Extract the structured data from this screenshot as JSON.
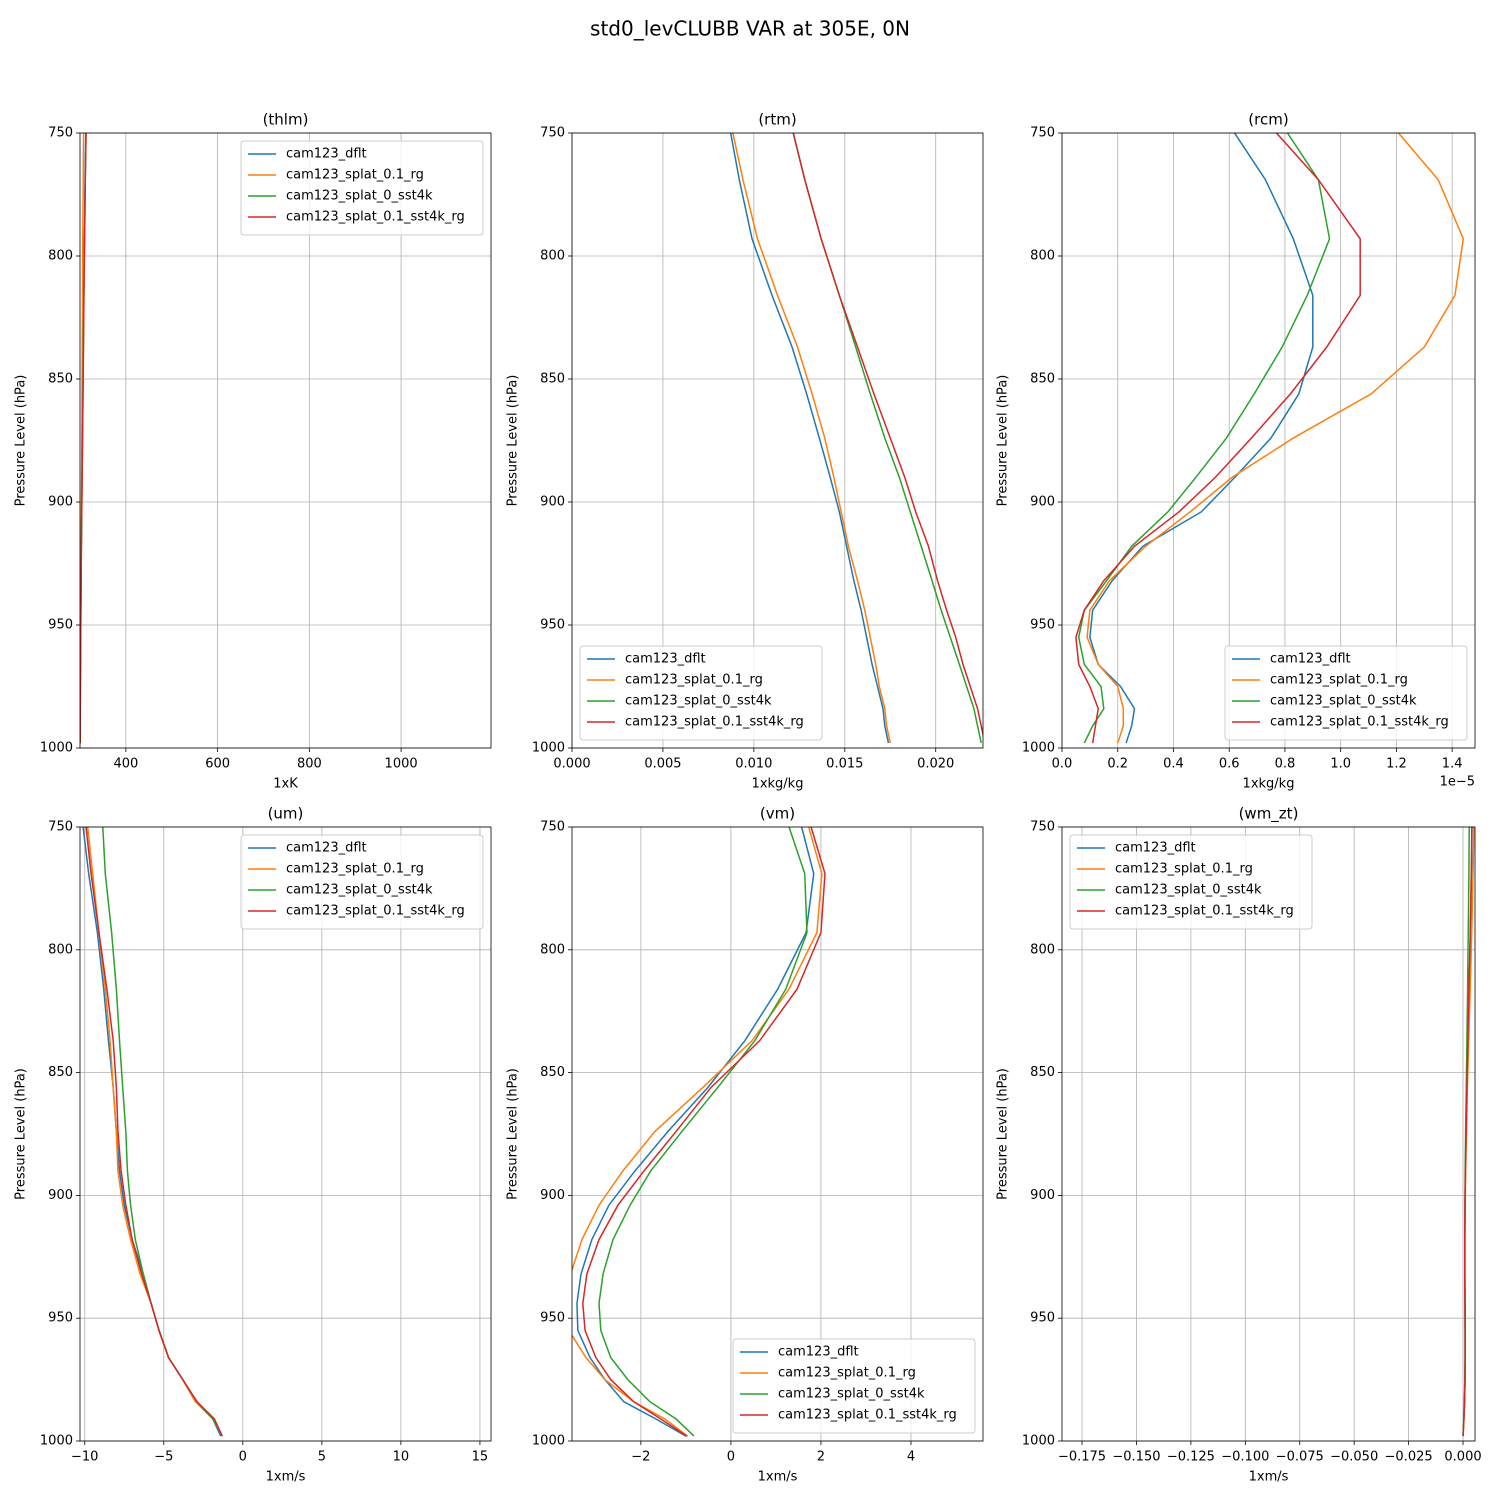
{
  "title": "std0_levCLUBB VAR at 305E, 0N",
  "chart_data": [
    {
      "type": "line",
      "title": "(thlm)",
      "xlabel": "1xK",
      "ylabel": "Pressure Level (hPa)",
      "legend": "upper right",
      "grid": true,
      "xlim": [
        300,
        1196
      ],
      "xticks": [
        400,
        600,
        800,
        1000
      ],
      "ylim": [
        1000,
        750
      ],
      "yticks": [
        750,
        800,
        850,
        900,
        950,
        1000
      ],
      "y": [
        745,
        769,
        793,
        816,
        837,
        856,
        874,
        890,
        904,
        918,
        932,
        944,
        955,
        966,
        975,
        984,
        991,
        998
      ],
      "series": [
        {
          "name": "cam123_dflt",
          "color": "#1f77b4",
          "values": [
            313,
            311,
            309.5,
            308,
            307,
            306,
            305,
            304.2,
            303.5,
            302.8,
            302.2,
            301.7,
            301.3,
            301,
            300.7,
            300.5,
            300.3,
            300.1
          ]
        },
        {
          "name": "cam123_splat_0.1_rg",
          "color": "#ff7f0e",
          "values": [
            308,
            307,
            306,
            305.5,
            305,
            304.5,
            304,
            303.5,
            303,
            302.5,
            302,
            301.6,
            301.2,
            300.9,
            300.6,
            300.4,
            300.2,
            300
          ]
        },
        {
          "name": "cam123_splat_0_sst4k",
          "color": "#2ca02c",
          "values": [
            313.5,
            311.5,
            310,
            308.5,
            307.5,
            306.5,
            305.5,
            304.6,
            303.8,
            303,
            302.4,
            301.9,
            301.5,
            301.1,
            300.8,
            300.6,
            300.4,
            300.2
          ]
        },
        {
          "name": "cam123_splat_0.1_sst4k_rg",
          "color": "#d62728",
          "values": [
            313.5,
            311.5,
            310,
            308.5,
            307.5,
            306.5,
            305.5,
            304.6,
            303.8,
            303,
            302.4,
            301.9,
            301.5,
            301.1,
            300.8,
            300.6,
            300.4,
            300.2
          ]
        }
      ]
    },
    {
      "type": "line",
      "title": "(rtm)",
      "xlabel": "1xkg/kg",
      "ylabel": "Pressure Level (hPa)",
      "legend": "lower left",
      "grid": true,
      "xlim": [
        0,
        0.0226
      ],
      "xticks": [
        {
          "value": 0,
          "label": "0.000"
        },
        {
          "value": 0.005,
          "label": "0.005"
        },
        {
          "value": 0.01,
          "label": "0.010"
        },
        {
          "value": 0.015,
          "label": "0.015"
        },
        {
          "value": 0.02,
          "label": "0.020"
        }
      ],
      "ylim": [
        1000,
        750
      ],
      "yticks": [
        750,
        800,
        850,
        900,
        950,
        1000
      ],
      "y": [
        745,
        769,
        793,
        816,
        837,
        856,
        874,
        890,
        904,
        918,
        932,
        944,
        955,
        966,
        975,
        984,
        991,
        998
      ],
      "series": [
        {
          "name": "cam123_dflt",
          "color": "#1f77b4",
          "values": [
            0.0086,
            0.0092,
            0.0099,
            0.011,
            0.0121,
            0.0129,
            0.0136,
            0.0142,
            0.0147,
            0.0151,
            0.0155,
            0.0159,
            0.0162,
            0.0165,
            0.0168,
            0.0171,
            0.0172,
            0.0174
          ]
        },
        {
          "name": "cam123_splat_0.1_rg",
          "color": "#ff7f0e",
          "values": [
            0.0087,
            0.0094,
            0.0102,
            0.0113,
            0.0124,
            0.0132,
            0.0139,
            0.0144,
            0.0148,
            0.0152,
            0.0157,
            0.0161,
            0.0164,
            0.0167,
            0.0169,
            0.0172,
            0.0173,
            0.0175
          ]
        },
        {
          "name": "cam123_splat_0_sst4k",
          "color": "#2ca02c",
          "values": [
            0.012,
            0.0128,
            0.0137,
            0.0147,
            0.0156,
            0.0164,
            0.0172,
            0.018,
            0.0186,
            0.0192,
            0.0198,
            0.0203,
            0.0208,
            0.0213,
            0.0217,
            0.0221,
            0.0223,
            0.0225
          ]
        },
        {
          "name": "cam123_splat_0.1_sst4k_rg",
          "color": "#d62728",
          "values": [
            0.012,
            0.0128,
            0.0137,
            0.0147,
            0.0157,
            0.0166,
            0.0175,
            0.0183,
            0.0189,
            0.0196,
            0.0201,
            0.0206,
            0.0211,
            0.0215,
            0.0219,
            0.0223,
            0.0225,
            0.0227
          ]
        }
      ]
    },
    {
      "type": "line",
      "title": "(rcm)",
      "xlabel": "1xkg/kg",
      "x_offset_label": "1e−5",
      "ylabel": "Pressure Level (hPa)",
      "legend": "lower right",
      "grid": true,
      "xlim": [
        0,
        1.482
      ],
      "xticks": [
        {
          "value": 0,
          "label": "0.0"
        },
        0.2,
        0.4,
        0.6,
        0.8,
        {
          "value": 1,
          "label": "1.0"
        },
        1.2,
        1.4
      ],
      "ylim": [
        1000,
        750
      ],
      "yticks": [
        750,
        800,
        850,
        900,
        950,
        1000
      ],
      "y": [
        745,
        769,
        793,
        816,
        837,
        856,
        874,
        890,
        904,
        918,
        932,
        944,
        955,
        966,
        975,
        984,
        991,
        998
      ],
      "series": [
        {
          "name": "cam123_dflt",
          "color": "#1f77b4",
          "values": [
            0.59,
            0.73,
            0.83,
            0.9,
            0.9,
            0.85,
            0.75,
            0.62,
            0.5,
            0.29,
            0.18,
            0.11,
            0.1,
            0.13,
            0.21,
            0.26,
            0.25,
            0.23
          ]
        },
        {
          "name": "cam123_splat_0.1_rg",
          "color": "#ff7f0e",
          "values": [
            1.17,
            1.35,
            1.44,
            1.41,
            1.3,
            1.11,
            0.83,
            0.61,
            0.46,
            0.3,
            0.17,
            0.1,
            0.09,
            0.13,
            0.2,
            0.22,
            0.22,
            0.2
          ]
        },
        {
          "name": "cam123_splat_0_sst4k",
          "color": "#2ca02c",
          "values": [
            0.78,
            0.92,
            0.96,
            0.88,
            0.79,
            0.69,
            0.59,
            0.48,
            0.38,
            0.25,
            0.16,
            0.08,
            0.06,
            0.08,
            0.14,
            0.15,
            0.11,
            0.08
          ]
        },
        {
          "name": "cam123_splat_0.1_sst4k_rg",
          "color": "#d62728",
          "values": [
            0.73,
            0.92,
            1.07,
            1.07,
            0.95,
            0.82,
            0.68,
            0.55,
            0.42,
            0.26,
            0.15,
            0.08,
            0.05,
            0.06,
            0.1,
            0.13,
            0.12,
            0.11
          ]
        }
      ]
    },
    {
      "type": "line",
      "title": "(um)",
      "xlabel": "1xm/s",
      "ylabel": "Pressure Level (hPa)",
      "legend": "upper right",
      "grid": true,
      "xlim": [
        -10.3,
        15.7
      ],
      "xticks": [
        {
          "value": -10,
          "label": "−10"
        },
        {
          "value": -5,
          "label": "−5"
        },
        0,
        5,
        10,
        15
      ],
      "ylim": [
        1000,
        750
      ],
      "yticks": [
        750,
        800,
        850,
        900,
        950,
        1000
      ],
      "y": [
        745,
        769,
        793,
        816,
        837,
        856,
        874,
        890,
        904,
        918,
        932,
        944,
        955,
        966,
        975,
        984,
        991,
        998
      ],
      "series": [
        {
          "name": "cam123_dflt",
          "color": "#1f77b4",
          "values": [
            -10.2,
            -9.75,
            -9.2,
            -8.8,
            -8.5,
            -8.2,
            -8,
            -7.8,
            -7.5,
            -7,
            -6.3,
            -5.8,
            -5.3,
            -4.7,
            -3.8,
            -3,
            -1.9,
            -1.4
          ]
        },
        {
          "name": "cam123_splat_0.1_rg",
          "color": "#ff7f0e",
          "values": [
            -9.9,
            -9.5,
            -9.1,
            -8.7,
            -8.4,
            -8.2,
            -8,
            -7.9,
            -7.6,
            -7.1,
            -6.5,
            -5.8,
            -5.3,
            -4.7,
            -3.8,
            -3,
            -1.9,
            -1.3
          ]
        },
        {
          "name": "cam123_splat_0_sst4k",
          "color": "#2ca02c",
          "values": [
            -8.9,
            -8.7,
            -8.3,
            -8,
            -7.8,
            -7.6,
            -7.4,
            -7.3,
            -7.1,
            -6.8,
            -6.3,
            -5.8,
            -5.3,
            -4.7,
            -3.8,
            -2.9,
            -1.9,
            -1.3
          ]
        },
        {
          "name": "cam123_splat_0.1_sst4k_rg",
          "color": "#d62728",
          "values": [
            -10,
            -9.6,
            -9.1,
            -8.6,
            -8.2,
            -8,
            -7.9,
            -7.7,
            -7.4,
            -7,
            -6.4,
            -5.8,
            -5.3,
            -4.7,
            -3.8,
            -2.9,
            -1.8,
            -1.3
          ]
        }
      ]
    },
    {
      "type": "line",
      "title": "(vm)",
      "xlabel": "1xm/s",
      "ylabel": "Pressure Level (hPa)",
      "legend": "lower right",
      "grid": true,
      "xlim": [
        -3.53,
        5.6
      ],
      "xticks": [
        {
          "value": -2,
          "label": "−2"
        },
        0,
        2,
        4
      ],
      "ylim": [
        1000,
        750
      ],
      "yticks": [
        750,
        800,
        850,
        900,
        950,
        1000
      ],
      "y": [
        745,
        769,
        793,
        816,
        837,
        856,
        874,
        890,
        904,
        918,
        932,
        944,
        955,
        966,
        975,
        984,
        991,
        998
      ],
      "series": [
        {
          "name": "cam123_dflt",
          "color": "#1f77b4",
          "values": [
            1.5,
            1.84,
            1.67,
            1.04,
            0.31,
            -0.51,
            -1.4,
            -2.13,
            -2.71,
            -3.09,
            -3.33,
            -3.42,
            -3.4,
            -3.13,
            -2.8,
            -2.38,
            -1.67,
            -1
          ]
        },
        {
          "name": "cam123_splat_0.1_rg",
          "color": "#ff7f0e",
          "values": [
            1.65,
            2.02,
            1.91,
            1.29,
            0.47,
            -0.62,
            -1.69,
            -2.4,
            -2.93,
            -3.31,
            -3.56,
            -3.67,
            -3.6,
            -3.22,
            -2.8,
            -2.16,
            -1.47,
            -0.96
          ]
        },
        {
          "name": "cam123_splat_0_sst4k",
          "color": "#2ca02c",
          "values": [
            1.2,
            1.64,
            1.69,
            1.22,
            0.53,
            -0.29,
            -1.09,
            -1.78,
            -2.24,
            -2.62,
            -2.84,
            -2.93,
            -2.89,
            -2.67,
            -2.29,
            -1.8,
            -1.22,
            -0.82
          ]
        },
        {
          "name": "cam123_splat_0.1_sst4k_rg",
          "color": "#d62728",
          "values": [
            1.7,
            2.09,
            2,
            1.47,
            0.64,
            -0.44,
            -1.22,
            -1.93,
            -2.51,
            -2.93,
            -3.2,
            -3.29,
            -3.24,
            -3,
            -2.67,
            -2.16,
            -1.56,
            -0.98
          ]
        }
      ]
    },
    {
      "type": "line",
      "title": "(wm_zt)",
      "xlabel": "1xm/s",
      "ylabel": "Pressure Level (hPa)",
      "legend": "upper left",
      "grid": true,
      "xlim": [
        -0.1842,
        0.0055
      ],
      "xticks": [
        {
          "value": -0.175,
          "label": "−0.175"
        },
        {
          "value": -0.15,
          "label": "−0.150"
        },
        {
          "value": -0.125,
          "label": "−0.125"
        },
        {
          "value": -0.1,
          "label": "−0.100"
        },
        {
          "value": -0.075,
          "label": "−0.075"
        },
        {
          "value": -0.05,
          "label": "−0.050"
        },
        {
          "value": -0.025,
          "label": "−0.025"
        },
        {
          "value": 0,
          "label": "0.000"
        }
      ],
      "ylim": [
        1000,
        750
      ],
      "yticks": [
        750,
        800,
        850,
        900,
        950,
        1000
      ],
      "y": [
        745,
        769,
        793,
        816,
        837,
        856,
        874,
        890,
        904,
        918,
        932,
        944,
        955,
        966,
        975,
        984,
        991,
        998
      ],
      "series": [
        {
          "name": "cam123_dflt",
          "color": "#1f77b4",
          "values": [
            0.0042,
            0.0039,
            0.0034,
            0.0028,
            0.0022,
            0.0018,
            0.0014,
            0.0011,
            0.0009,
            0.0008,
            0.0008,
            0.0009,
            0.001,
            0.001,
            0.0009,
            0.0007,
            0.0004,
            0
          ]
        },
        {
          "name": "cam123_splat_0.1_rg",
          "color": "#ff7f0e",
          "values": [
            0.0051,
            0.0046,
            0.004,
            0.0033,
            0.0026,
            0.002,
            0.0016,
            0.0012,
            0.001,
            0.0009,
            0.0009,
            0.001,
            0.001,
            0.001,
            0.0009,
            0.0007,
            0.0004,
            0
          ]
        },
        {
          "name": "cam123_splat_0_sst4k",
          "color": "#2ca02c",
          "values": [
            0.0029,
            0.0027,
            0.0024,
            0.0021,
            0.0018,
            0.0015,
            0.0012,
            0.001,
            0.0009,
            0.0008,
            0.0008,
            0.0009,
            0.0009,
            0.0009,
            0.0008,
            0.0006,
            0.0003,
            0
          ]
        },
        {
          "name": "cam123_splat_0.1_sst4k_rg",
          "color": "#d62728",
          "values": [
            0.0041,
            0.0038,
            0.0033,
            0.0027,
            0.0022,
            0.0018,
            0.0014,
            0.0011,
            0.0009,
            0.0008,
            0.0008,
            0.0009,
            0.001,
            0.001,
            0.0009,
            0.0007,
            0.0004,
            0
          ]
        }
      ]
    }
  ]
}
